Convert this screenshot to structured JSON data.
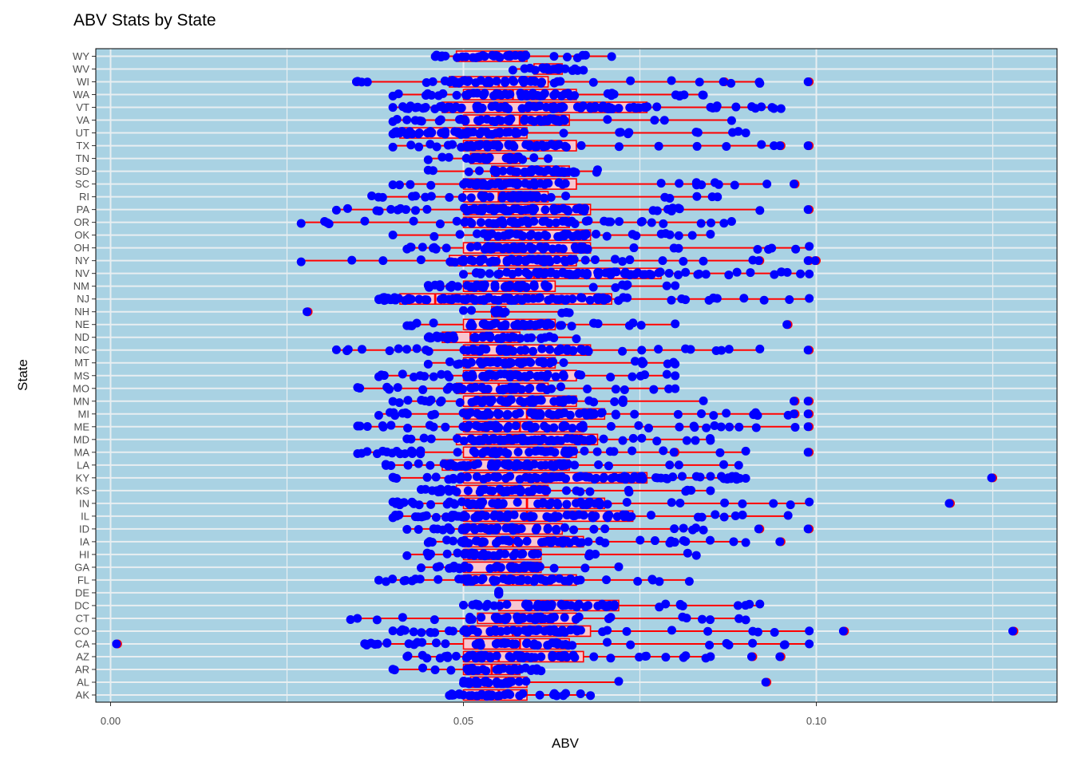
{
  "chart_data": {
    "type": "box",
    "title": "ABV Stats by State",
    "xlabel": "ABV",
    "ylabel": "State",
    "xlim": [
      -0.004,
      0.134
    ],
    "xticks": [
      0.0,
      0.05,
      0.1
    ],
    "xtick_labels": [
      "0.00",
      "0.05",
      "0.10"
    ],
    "orientation": "horizontal",
    "grid": "major-and-minor, white",
    "colors": {
      "panel_background": "#A9D2E3",
      "grid": "#E8EEF1",
      "box_fill": "#F7C6D0",
      "box_stroke": "#FF0000",
      "point": "#0000FF",
      "outlier": "#FF0000"
    },
    "categories": [
      "AK",
      "AL",
      "AR",
      "AZ",
      "CA",
      "CO",
      "CT",
      "DC",
      "DE",
      "FL",
      "GA",
      "HI",
      "IA",
      "ID",
      "IL",
      "IN",
      "KS",
      "KY",
      "LA",
      "MA",
      "MD",
      "ME",
      "MI",
      "MN",
      "MO",
      "MS",
      "MT",
      "NC",
      "ND",
      "NE",
      "NH",
      "NJ",
      "NM",
      "NV",
      "NY",
      "OH",
      "OK",
      "OR",
      "PA",
      "RI",
      "SC",
      "SD",
      "TN",
      "TX",
      "UT",
      "VA",
      "VT",
      "WA",
      "WI",
      "WV",
      "WY"
    ],
    "boxes": [
      {
        "state": "AK",
        "min": 0.048,
        "q1": 0.05,
        "median": 0.055,
        "q3": 0.059,
        "max": 0.068
      },
      {
        "state": "AL",
        "min": 0.05,
        "q1": 0.051,
        "median": 0.056,
        "q3": 0.059,
        "max": 0.072,
        "outliers": [
          0.093
        ]
      },
      {
        "state": "AR",
        "min": 0.04,
        "q1": 0.05,
        "median": 0.054,
        "q3": 0.058,
        "max": 0.061
      },
      {
        "state": "AZ",
        "min": 0.042,
        "q1": 0.05,
        "median": 0.055,
        "q3": 0.067,
        "max": 0.085,
        "outliers": [
          0.091,
          0.095
        ]
      },
      {
        "state": "CA",
        "min": 0.036,
        "q1": 0.05,
        "median": 0.058,
        "q3": 0.065,
        "max": 0.099,
        "outliers": [
          0.001
        ]
      },
      {
        "state": "CO",
        "min": 0.04,
        "q1": 0.05,
        "median": 0.057,
        "q3": 0.068,
        "max": 0.099,
        "outliers": [
          0.104,
          0.128
        ]
      },
      {
        "state": "CT",
        "min": 0.034,
        "q1": 0.052,
        "median": 0.058,
        "q3": 0.066,
        "max": 0.09
      },
      {
        "state": "DC",
        "min": 0.05,
        "q1": 0.055,
        "median": 0.062,
        "q3": 0.072,
        "max": 0.092
      },
      {
        "state": "DE",
        "min": 0.055,
        "q1": 0.055,
        "median": 0.055,
        "q3": 0.055,
        "max": 0.055
      },
      {
        "state": "FL",
        "min": 0.038,
        "q1": 0.05,
        "median": 0.057,
        "q3": 0.066,
        "max": 0.082
      },
      {
        "state": "GA",
        "min": 0.044,
        "q1": 0.05,
        "median": 0.055,
        "q3": 0.061,
        "max": 0.072
      },
      {
        "state": "HI",
        "min": 0.042,
        "q1": 0.05,
        "median": 0.055,
        "q3": 0.061,
        "max": 0.083
      },
      {
        "state": "IA",
        "min": 0.045,
        "q1": 0.05,
        "median": 0.057,
        "q3": 0.067,
        "max": 0.09,
        "outliers": [
          0.095
        ]
      },
      {
        "state": "ID",
        "min": 0.042,
        "q1": 0.05,
        "median": 0.055,
        "q3": 0.064,
        "max": 0.084,
        "outliers": [
          0.092,
          0.099
        ]
      },
      {
        "state": "IL",
        "min": 0.04,
        "q1": 0.05,
        "median": 0.059,
        "q3": 0.074,
        "max": 0.096
      },
      {
        "state": "IN",
        "min": 0.04,
        "q1": 0.05,
        "median": 0.059,
        "q3": 0.07,
        "max": 0.099,
        "outliers": [
          0.119
        ]
      },
      {
        "state": "KS",
        "min": 0.044,
        "q1": 0.049,
        "median": 0.055,
        "q3": 0.062,
        "max": 0.085
      },
      {
        "state": "KY",
        "min": 0.04,
        "q1": 0.05,
        "median": 0.062,
        "q3": 0.076,
        "max": 0.09,
        "outliers": [
          0.125
        ]
      },
      {
        "state": "LA",
        "min": 0.039,
        "q1": 0.047,
        "median": 0.051,
        "q3": 0.065,
        "max": 0.089
      },
      {
        "state": "MA",
        "min": 0.035,
        "q1": 0.05,
        "median": 0.056,
        "q3": 0.066,
        "max": 0.09,
        "outliers": [
          0.08,
          0.099
        ]
      },
      {
        "state": "MD",
        "min": 0.042,
        "q1": 0.049,
        "median": 0.057,
        "q3": 0.069,
        "max": 0.085
      },
      {
        "state": "ME",
        "min": 0.035,
        "q1": 0.05,
        "median": 0.058,
        "q3": 0.067,
        "max": 0.097,
        "outliers": [
          0.099
        ]
      },
      {
        "state": "MI",
        "min": 0.038,
        "q1": 0.05,
        "median": 0.059,
        "q3": 0.07,
        "max": 0.096,
        "outliers": [
          0.097,
          0.099
        ]
      },
      {
        "state": "MN",
        "min": 0.04,
        "q1": 0.05,
        "median": 0.056,
        "q3": 0.066,
        "max": 0.084,
        "outliers": [
          0.097,
          0.099
        ]
      },
      {
        "state": "MO",
        "min": 0.035,
        "q1": 0.049,
        "median": 0.055,
        "q3": 0.062,
        "max": 0.08
      },
      {
        "state": "MS",
        "min": 0.038,
        "q1": 0.05,
        "median": 0.054,
        "q3": 0.066,
        "max": 0.08
      },
      {
        "state": "MT",
        "min": 0.045,
        "q1": 0.05,
        "median": 0.056,
        "q3": 0.063,
        "max": 0.08
      },
      {
        "state": "NC",
        "min": 0.032,
        "q1": 0.05,
        "median": 0.057,
        "q3": 0.068,
        "max": 0.092,
        "outliers": [
          0.099
        ]
      },
      {
        "state": "ND",
        "min": 0.045,
        "q1": 0.047,
        "median": 0.051,
        "q3": 0.058,
        "max": 0.066
      },
      {
        "state": "NE",
        "min": 0.042,
        "q1": 0.05,
        "median": 0.055,
        "q3": 0.063,
        "max": 0.08,
        "outliers": [
          0.096
        ]
      },
      {
        "state": "NH",
        "min": 0.05,
        "q1": 0.054,
        "median": 0.055,
        "q3": 0.056,
        "max": 0.065,
        "outliers": [
          0.028
        ]
      },
      {
        "state": "NJ",
        "min": 0.038,
        "q1": 0.041,
        "median": 0.046,
        "q3": 0.071,
        "max": 0.099
      },
      {
        "state": "NM",
        "min": 0.045,
        "q1": 0.05,
        "median": 0.057,
        "q3": 0.063,
        "max": 0.08
      },
      {
        "state": "NV",
        "min": 0.05,
        "q1": 0.055,
        "median": 0.06,
        "q3": 0.078,
        "max": 0.099
      },
      {
        "state": "NY",
        "min": 0.027,
        "q1": 0.048,
        "median": 0.055,
        "q3": 0.066,
        "max": 0.091,
        "outliers": [
          0.092,
          0.099,
          0.1
        ]
      },
      {
        "state": "OH",
        "min": 0.042,
        "q1": 0.05,
        "median": 0.057,
        "q3": 0.068,
        "max": 0.099
      },
      {
        "state": "OK",
        "min": 0.04,
        "q1": 0.053,
        "median": 0.058,
        "q3": 0.068,
        "max": 0.085
      },
      {
        "state": "OR",
        "min": 0.027,
        "q1": 0.05,
        "median": 0.058,
        "q3": 0.065,
        "max": 0.088
      },
      {
        "state": "PA",
        "min": 0.032,
        "q1": 0.05,
        "median": 0.057,
        "q3": 0.068,
        "max": 0.092,
        "outliers": [
          0.099
        ]
      },
      {
        "state": "RI",
        "min": 0.037,
        "q1": 0.05,
        "median": 0.055,
        "q3": 0.062,
        "max": 0.086
      },
      {
        "state": "SC",
        "min": 0.04,
        "q1": 0.05,
        "median": 0.056,
        "q3": 0.066,
        "max": 0.093,
        "outliers": [
          0.097
        ]
      },
      {
        "state": "SD",
        "min": 0.045,
        "q1": 0.054,
        "median": 0.057,
        "q3": 0.065,
        "max": 0.069
      },
      {
        "state": "TN",
        "min": 0.045,
        "q1": 0.051,
        "median": 0.057,
        "q3": 0.058,
        "max": 0.062
      },
      {
        "state": "TX",
        "min": 0.04,
        "q1": 0.05,
        "median": 0.06,
        "q3": 0.066,
        "max": 0.094,
        "outliers": [
          0.095,
          0.099
        ]
      },
      {
        "state": "UT",
        "min": 0.04,
        "q1": 0.041,
        "median": 0.05,
        "q3": 0.059,
        "max": 0.09
      },
      {
        "state": "VA",
        "min": 0.04,
        "q1": 0.05,
        "median": 0.058,
        "q3": 0.065,
        "max": 0.088
      },
      {
        "state": "VT",
        "min": 0.04,
        "q1": 0.047,
        "median": 0.056,
        "q3": 0.076,
        "max": 0.095
      },
      {
        "state": "WA",
        "min": 0.04,
        "q1": 0.05,
        "median": 0.057,
        "q3": 0.066,
        "max": 0.084
      },
      {
        "state": "WI",
        "min": 0.035,
        "q1": 0.048,
        "median": 0.055,
        "q3": 0.062,
        "max": 0.092,
        "outliers": [
          0.035,
          0.087,
          0.099
        ]
      },
      {
        "state": "WV",
        "min": 0.057,
        "q1": 0.06,
        "median": 0.062,
        "q3": 0.064,
        "max": 0.067
      },
      {
        "state": "WY",
        "min": 0.046,
        "q1": 0.049,
        "median": 0.055,
        "q3": 0.059,
        "max": 0.071
      }
    ]
  }
}
